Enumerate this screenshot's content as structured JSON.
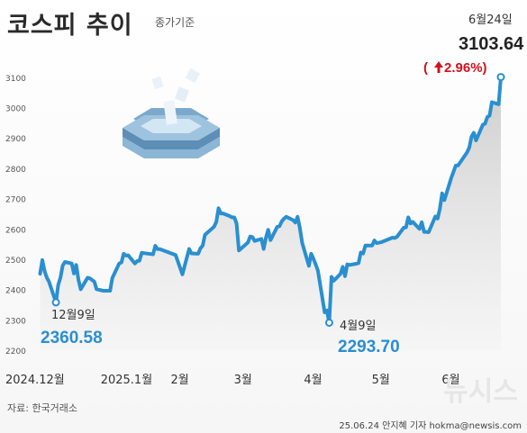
{
  "header": {
    "title": "코스피 추이",
    "subtitle": "종가기준"
  },
  "footer": {
    "source": "자료: 한국거래소",
    "credit": "25.06.24 안지혜 기자 hokma@newsis.com",
    "watermark": "뉴시스"
  },
  "colors": {
    "line": "#2a8fd0",
    "up": "#d0121b",
    "area": "#d9d9d9"
  },
  "chart_data": {
    "type": "line",
    "x": [
      "2024-12-02",
      "2024-12-03",
      "2024-12-04",
      "2024-12-05",
      "2024-12-06",
      "2024-12-09",
      "2024-12-10",
      "2024-12-11",
      "2024-12-12",
      "2024-12-13",
      "2024-12-16",
      "2024-12-17",
      "2024-12-18",
      "2024-12-19",
      "2024-12-20",
      "2024-12-23",
      "2024-12-24",
      "2024-12-26",
      "2024-12-27",
      "2024-12-30",
      "2025-01-02",
      "2025-01-03",
      "2025-01-06",
      "2025-01-07",
      "2025-01-08",
      "2025-01-09",
      "2025-01-10",
      "2025-01-13",
      "2025-01-14",
      "2025-01-15",
      "2025-01-16",
      "2025-01-17",
      "2025-01-20",
      "2025-01-21",
      "2025-01-22",
      "2025-01-23",
      "2025-01-24",
      "2025-01-31",
      "2025-02-03",
      "2025-02-04",
      "2025-02-05",
      "2025-02-06",
      "2025-02-07",
      "2025-02-10",
      "2025-02-11",
      "2025-02-12",
      "2025-02-13",
      "2025-02-14",
      "2025-02-17",
      "2025-02-18",
      "2025-02-19",
      "2025-02-20",
      "2025-02-21",
      "2025-02-24",
      "2025-02-25",
      "2025-02-26",
      "2025-02-27",
      "2025-02-28",
      "2025-03-04",
      "2025-03-05",
      "2025-03-06",
      "2025-03-07",
      "2025-03-10",
      "2025-03-11",
      "2025-03-12",
      "2025-03-13",
      "2025-03-14",
      "2025-03-17",
      "2025-03-18",
      "2025-03-19",
      "2025-03-20",
      "2025-03-21",
      "2025-03-24",
      "2025-03-25",
      "2025-03-26",
      "2025-03-27",
      "2025-03-28",
      "2025-03-31",
      "2025-04-01",
      "2025-04-02",
      "2025-04-03",
      "2025-04-04",
      "2025-04-07",
      "2025-04-08",
      "2025-04-09",
      "2025-04-10",
      "2025-04-11",
      "2025-04-14",
      "2025-04-15",
      "2025-04-16",
      "2025-04-17",
      "2025-04-18",
      "2025-04-21",
      "2025-04-22",
      "2025-04-23",
      "2025-04-24",
      "2025-04-25",
      "2025-04-28",
      "2025-04-29",
      "2025-04-30",
      "2025-05-02",
      "2025-05-07",
      "2025-05-08",
      "2025-05-09",
      "2025-05-12",
      "2025-05-13",
      "2025-05-14",
      "2025-05-15",
      "2025-05-16",
      "2025-05-19",
      "2025-05-20",
      "2025-05-21",
      "2025-05-22",
      "2025-05-23",
      "2025-05-26",
      "2025-05-27",
      "2025-05-28",
      "2025-05-29",
      "2025-05-30",
      "2025-06-02",
      "2025-06-04",
      "2025-06-05",
      "2025-06-09",
      "2025-06-10",
      "2025-06-11",
      "2025-06-12",
      "2025-06-13",
      "2025-06-16",
      "2025-06-17",
      "2025-06-18",
      "2025-06-19",
      "2025-06-20",
      "2025-06-23",
      "2025-06-24"
    ],
    "series": [
      {
        "values": [
          2455,
          2500,
          2464,
          2442,
          2428,
          2360.58,
          2418,
          2442,
          2482,
          2494,
          2489,
          2456,
          2484,
          2435,
          2404,
          2442,
          2440,
          2429,
          2404,
          2399,
          2399,
          2441,
          2489,
          2492,
          2521,
          2515,
          2516,
          2489,
          2497,
          2498,
          2524,
          2523,
          2520,
          2519,
          2547,
          2536,
          2536,
          2517,
          2453,
          2481,
          2509,
          2537,
          2522,
          2521,
          2539,
          2548,
          2583,
          2590,
          2610,
          2626,
          2671,
          2654,
          2654,
          2645,
          2641,
          2641,
          2621,
          2532,
          2558,
          2578,
          2576,
          2563,
          2570,
          2537,
          2574,
          2600,
          2566,
          2610,
          2612,
          2628,
          2637,
          2643,
          2632,
          2624,
          2643,
          2607,
          2557,
          2481,
          2521,
          2505,
          2486,
          2465,
          2328,
          2334,
          2293.7,
          2445,
          2432,
          2455,
          2478,
          2447,
          2486,
          2484,
          2488,
          2490,
          2525,
          2522,
          2548,
          2548,
          2565,
          2556,
          2559,
          2574,
          2573,
          2577,
          2607,
          2608,
          2641,
          2621,
          2626,
          2603,
          2625,
          2593,
          2593,
          2592,
          2644,
          2637,
          2670,
          2720,
          2698,
          2770,
          2812,
          2812,
          2855,
          2871,
          2907,
          2920,
          2895,
          2946,
          2950,
          2972,
          2977,
          3021,
          3014,
          3103.64
        ]
      }
    ],
    "x_tick_labels": [
      "2024.12월",
      "2025.1월",
      "2월",
      "3월",
      "4월",
      "5월",
      "6월"
    ],
    "y_ticks": [
      2200,
      2300,
      2400,
      2500,
      2600,
      2700,
      2800,
      2900,
      3000,
      3100
    ],
    "ylim": [
      2200,
      3150
    ],
    "grid": false,
    "annotations": [
      {
        "date": "12월9일",
        "value": "2360.58"
      },
      {
        "date": "4월9일",
        "value": "2293.70"
      },
      {
        "date": "6월24일",
        "value": "3103.64",
        "change": "2.96%)"
      }
    ]
  }
}
